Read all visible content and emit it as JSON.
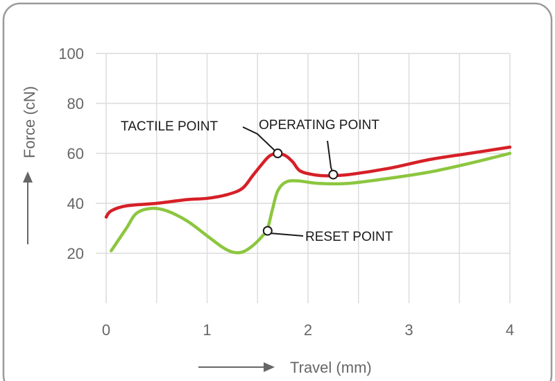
{
  "chart_data": {
    "type": "line",
    "xlabel": "Travel (mm)",
    "ylabel": "Force (cN)",
    "xlim": [
      0,
      4
    ],
    "ylim": [
      0,
      100
    ],
    "x_ticks": [
      "0",
      "1",
      "2",
      "3",
      "4"
    ],
    "y_ticks": [
      "20",
      "40",
      "60",
      "80",
      "100"
    ],
    "grid": true,
    "colors": {
      "press": "#d62027",
      "return": "#8cc63f",
      "frame": "#9a9a9a",
      "text": "#666666"
    },
    "series": [
      {
        "key": "press",
        "x": [
          0.0,
          0.05,
          0.2,
          0.5,
          0.8,
          1.0,
          1.2,
          1.35,
          1.45,
          1.55,
          1.62,
          1.7,
          1.78,
          1.85,
          1.92,
          2.05,
          2.2,
          2.4,
          2.8,
          3.2,
          3.6,
          4.0
        ],
        "y": [
          34.5,
          37,
          39,
          40,
          41.5,
          42,
          43.5,
          46,
          51,
          56,
          59,
          60,
          59,
          56.5,
          53,
          51.5,
          51,
          51.5,
          54,
          57.5,
          60,
          62.5
        ]
      },
      {
        "key": "return",
        "x": [
          0.05,
          0.2,
          0.3,
          0.45,
          0.6,
          0.8,
          1.0,
          1.15,
          1.25,
          1.35,
          1.45,
          1.55,
          1.6,
          1.65,
          1.7,
          1.78,
          1.9,
          2.1,
          2.4,
          2.8,
          3.2,
          3.6,
          4.0
        ],
        "y": [
          21,
          30,
          36,
          38,
          37,
          33,
          27,
          22.5,
          20.5,
          20.5,
          23,
          27,
          30,
          38,
          45,
          48.5,
          49,
          48,
          48,
          50,
          52.5,
          56,
          60
        ]
      }
    ],
    "annotations": [
      {
        "label": "TACTILE POINT",
        "x": 1.7,
        "y": 60,
        "marker": true
      },
      {
        "label": "OPERATING POINT",
        "x": 2.25,
        "y": 51.5,
        "marker": true
      },
      {
        "label": "RESET POINT",
        "x": 1.6,
        "y": 29,
        "marker": true
      }
    ]
  }
}
